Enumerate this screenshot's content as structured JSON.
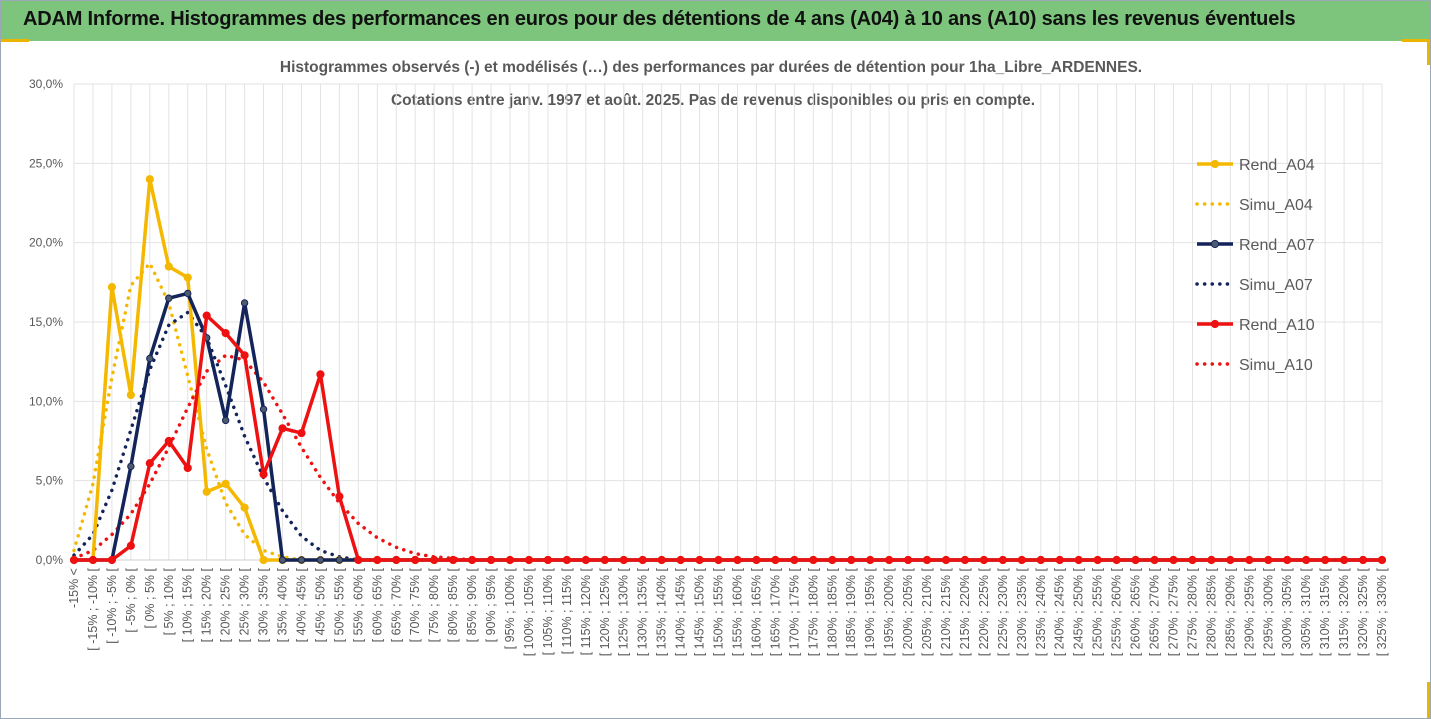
{
  "banner": {
    "title": "ADAM Informe. Histogrammes des performances en euros pour des détentions de 4 ans (A04) à 10 ans (A10) sans les revenus éventuels"
  },
  "colors": {
    "banner_bg": "#7dc57d",
    "corner": "#e9b500",
    "a04": "#f5b800",
    "a07": "#12245a",
    "a10": "#ee1111"
  },
  "chart_data": {
    "type": "line",
    "title": "Histogrammes observés (-) et modélisés (…) des performances par durées de détention pour 1ha_Libre_ARDENNES.",
    "subtitle": "Cotations entre janv. 1997 et août. 2025. Pas de revenus disponibles ou pris en compte.",
    "xlabel": "",
    "ylabel": "",
    "ylim": [
      0,
      30
    ],
    "y_tick_labels": [
      "0,0%",
      "5,0%",
      "10,0%",
      "15,0%",
      "20,0%",
      "25,0%",
      "30,0%"
    ],
    "grid": true,
    "legend_position": "right",
    "categories": [
      "-15% <",
      "[ -15% ; -10% [",
      "[ -10% ; -5% [",
      "[ -5% ; 0% [",
      "[ 0% ; 5% [",
      "[ 5% ; 10% [",
      "[ 10% ; 15% [",
      "[ 15% ; 20% [",
      "[ 20% ; 25% [",
      "[ 25% ; 30% [",
      "[ 30% ; 35% [",
      "[ 35% ; 40% [",
      "[ 40% ; 45% [",
      "[ 45% ; 50% [",
      "[ 50% ; 55% [",
      "[ 55% ; 60% [",
      "[ 60% ; 65% [",
      "[ 65% ; 70% [",
      "[ 70% ; 75% [",
      "[ 75% ; 80% [",
      "[ 80% ; 85% [",
      "[ 85% ; 90% [",
      "[ 90% ; 95% [",
      "[ 95% ; 100% [",
      "[ 100% ; 105% [",
      "[ 105% ; 110% [",
      "[ 110% ; 115% [",
      "[ 115% ; 120% [",
      "[ 120% ; 125% [",
      "[ 125% ; 130% [",
      "[ 130% ; 135% [",
      "[ 135% ; 140% [",
      "[ 140% ; 145% [",
      "[ 145% ; 150% [",
      "[ 150% ; 155% [",
      "[ 155% ; 160% [",
      "[ 160% ; 165% [",
      "[ 165% ; 170% [",
      "[ 170% ; 175% [",
      "[ 175% ; 180% [",
      "[ 180% ; 185% [",
      "[ 185% ; 190% [",
      "[ 190% ; 195% [",
      "[ 195% ; 200% [",
      "[ 200% ; 205% [",
      "[ 205% ; 210% [",
      "[ 210% ; 215% [",
      "[ 215% ; 220% [",
      "[ 220% ; 225% [",
      "[ 225% ; 230% [",
      "[ 230% ; 235% [",
      "[ 235% ; 240% [",
      "[ 240% ; 245% [",
      "[ 245% ; 250% [",
      "[ 250% ; 255% [",
      "[ 255% ; 260% [",
      "[ 260% ; 265% [",
      "[ 265% ; 270% [",
      "[ 270% ; 275% [",
      "[ 275% ; 280% [",
      "[ 280% ; 285% [",
      "[ 285% ; 290% [",
      "[ 290% ; 295% [",
      "[ 295% ; 300% [",
      "[ 300% ; 305% [",
      "[ 305% ; 310% [",
      "[ 310% ; 315% [",
      "[ 315% ; 320% [",
      "[ 320% ; 325% [",
      "[ 325% ; 330% ["
    ],
    "series": [
      {
        "name": "Rend_A04",
        "style": "solid",
        "color": "#f5b800",
        "marker": true,
        "values": [
          0,
          0,
          17.2,
          10.4,
          24,
          18.5,
          17.8,
          4.3,
          4.8,
          3.3,
          0,
          0,
          0,
          0,
          0,
          0,
          0,
          0,
          0,
          0,
          0,
          0,
          0,
          0,
          0,
          0,
          0,
          0,
          0,
          0,
          0,
          0,
          0,
          0,
          0,
          0,
          0,
          0,
          0,
          0,
          0,
          0,
          0,
          0,
          0,
          0,
          0,
          0,
          0,
          0,
          0,
          0,
          0,
          0,
          0,
          0,
          0,
          0,
          0,
          0,
          0,
          0,
          0,
          0,
          0,
          0,
          0,
          0,
          0,
          0
        ]
      },
      {
        "name": "Simu_A04",
        "style": "dotted",
        "color": "#f5b800",
        "marker": false,
        "values": [
          0.6,
          4.8,
          11.5,
          17.3,
          18.7,
          16.2,
          11.6,
          7,
          3.6,
          1.6,
          0.6,
          0.2,
          0,
          0,
          0,
          0,
          0,
          0,
          0,
          0,
          0,
          0,
          0,
          0,
          0,
          0,
          0,
          0,
          0,
          0,
          0,
          0,
          0,
          0,
          0,
          0,
          0,
          0,
          0,
          0,
          0,
          0,
          0,
          0,
          0,
          0,
          0,
          0,
          0,
          0,
          0,
          0,
          0,
          0,
          0,
          0,
          0,
          0,
          0,
          0,
          0,
          0,
          0,
          0,
          0,
          0,
          0,
          0,
          0,
          0
        ]
      },
      {
        "name": "Rend_A07",
        "style": "solid",
        "color": "#12245a",
        "marker": true,
        "values": [
          0,
          0,
          0,
          5.9,
          12.7,
          16.5,
          16.8,
          14,
          8.8,
          16.2,
          9.5,
          0,
          0,
          0,
          0,
          0,
          0,
          0,
          0,
          0,
          0,
          0,
          0,
          0,
          0,
          0,
          0,
          0,
          0,
          0,
          0,
          0,
          0,
          0,
          0,
          0,
          0,
          0,
          0,
          0,
          0,
          0,
          0,
          0,
          0,
          0,
          0,
          0,
          0,
          0,
          0,
          0,
          0,
          0,
          0,
          0,
          0,
          0,
          0,
          0,
          0,
          0,
          0,
          0,
          0,
          0,
          0,
          0,
          0,
          0
        ]
      },
      {
        "name": "Simu_A07",
        "style": "dotted",
        "color": "#12245a",
        "marker": false,
        "values": [
          0.3,
          1.6,
          4.4,
          8.2,
          12,
          14.8,
          15.6,
          14,
          11,
          7.8,
          5.2,
          3.1,
          1.5,
          0.6,
          0.2,
          0,
          0,
          0,
          0,
          0,
          0,
          0,
          0,
          0,
          0,
          0,
          0,
          0,
          0,
          0,
          0,
          0,
          0,
          0,
          0,
          0,
          0,
          0,
          0,
          0,
          0,
          0,
          0,
          0,
          0,
          0,
          0,
          0,
          0,
          0,
          0,
          0,
          0,
          0,
          0,
          0,
          0,
          0,
          0,
          0,
          0,
          0,
          0,
          0,
          0,
          0,
          0,
          0,
          0,
          0
        ]
      },
      {
        "name": "Rend_A10",
        "style": "solid",
        "color": "#ee1111",
        "marker": true,
        "values": [
          0,
          0,
          0,
          0.9,
          6.1,
          7.5,
          5.8,
          15.4,
          14.3,
          12.9,
          5.4,
          8.3,
          8,
          11.7,
          4,
          0,
          0,
          0,
          0,
          0,
          0,
          0,
          0,
          0,
          0,
          0,
          0,
          0,
          0,
          0,
          0,
          0,
          0,
          0,
          0,
          0,
          0,
          0,
          0,
          0,
          0,
          0,
          0,
          0,
          0,
          0,
          0,
          0,
          0,
          0,
          0,
          0,
          0,
          0,
          0,
          0,
          0,
          0,
          0,
          0,
          0,
          0,
          0,
          0,
          0,
          0,
          0,
          0,
          0,
          0
        ]
      },
      {
        "name": "Simu_A10",
        "style": "dotted",
        "color": "#ee1111",
        "marker": false,
        "values": [
          0.1,
          0.6,
          1.6,
          2.9,
          4.8,
          7.1,
          9.6,
          11.9,
          12.9,
          12.6,
          11.2,
          9.2,
          7.1,
          5.2,
          3.6,
          2.3,
          1.4,
          0.8,
          0.4,
          0.2,
          0.1,
          0,
          0,
          0,
          0,
          0,
          0,
          0,
          0,
          0,
          0,
          0,
          0,
          0,
          0,
          0,
          0,
          0,
          0,
          0,
          0,
          0,
          0,
          0,
          0,
          0,
          0,
          0,
          0,
          0,
          0,
          0,
          0,
          0,
          0,
          0,
          0,
          0,
          0,
          0,
          0,
          0,
          0,
          0,
          0,
          0,
          0,
          0,
          0,
          0
        ]
      }
    ]
  }
}
